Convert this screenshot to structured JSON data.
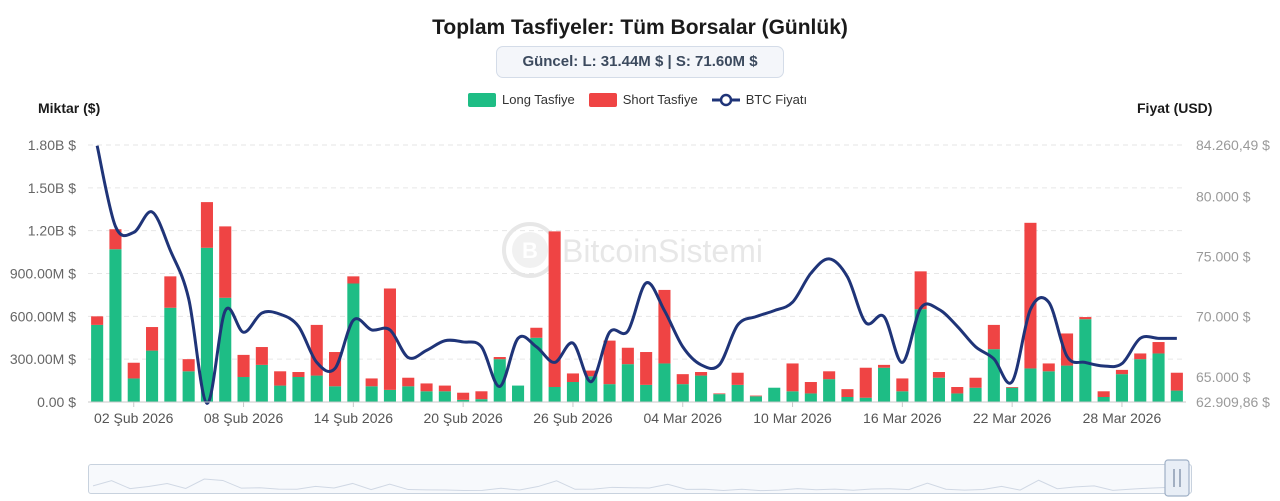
{
  "header": {
    "title": "Toplam Tasfiyeler: Tüm Borsalar (Günlük)",
    "current": "Güncel: L: 31.44M $ | S: 71.60M $"
  },
  "legend": {
    "long": "Long Tasfiye",
    "short": "Short Tasfiye",
    "price": "BTC Fiyatı"
  },
  "watermark": "BitcoinSistemi",
  "colors": {
    "long": "#1ebd85",
    "short": "#ef4444",
    "price": "#1f3478",
    "grid": "#e6e6e6"
  },
  "chart_data": {
    "type": "bar",
    "left_axis_title": "Miktar ($)",
    "right_axis_title": "Fiyat (USD)",
    "left_ticks": [
      "0.00 $",
      "300.00M $",
      "600.00M $",
      "900.00M $",
      "1.20B $",
      "1.50B $",
      "1.80B $"
    ],
    "left_tick_values": [
      0,
      300,
      600,
      900,
      1200,
      1500,
      1800
    ],
    "right_ticks": [
      "62.909,86 $",
      "65.000 $",
      "70.000 $",
      "75.000 $",
      "80.000 $",
      "84.260,49 $"
    ],
    "right_tick_values": [
      62909.86,
      65000,
      70000,
      75000,
      80000,
      84260.49
    ],
    "ylim_left": [
      0,
      1800
    ],
    "ylim_right": [
      62909.86,
      84260.49
    ],
    "x_labels": [
      "02 Şub 2026",
      "08 Şub 2026",
      "14 Şub 2026",
      "20 Şub 2026",
      "26 Şub 2026",
      "04 Mar 2026",
      "10 Mar 2026",
      "16 Mar 2026",
      "22 Mar 2026",
      "28 Mar 2026"
    ],
    "x_label_indices": [
      2,
      8,
      14,
      20,
      26,
      32,
      38,
      44,
      50,
      56
    ],
    "unit": "M $",
    "series": [
      {
        "name": "Long Tasfiye",
        "values": [
          540,
          1070,
          165,
          360,
          660,
          215,
          1080,
          730,
          175,
          260,
          115,
          175,
          185,
          110,
          830,
          110,
          85,
          110,
          75,
          75,
          15,
          20,
          300,
          115,
          450,
          105,
          140,
          180,
          125,
          265,
          120,
          270,
          125,
          185,
          55,
          120,
          40,
          100,
          75,
          60,
          160,
          35,
          30,
          240,
          75,
          650,
          170,
          60,
          100,
          370,
          100,
          235,
          215,
          255,
          580,
          35,
          195,
          300,
          340,
          80
        ]
      },
      {
        "name": "Short Tasfiye",
        "values": [
          60,
          140,
          110,
          165,
          220,
          85,
          320,
          500,
          155,
          125,
          100,
          35,
          355,
          240,
          50,
          55,
          710,
          60,
          55,
          40,
          50,
          55,
          15,
          0,
          70,
          1090,
          60,
          40,
          305,
          115,
          230,
          515,
          70,
          25,
          5,
          85,
          5,
          0,
          195,
          80,
          55,
          55,
          210,
          20,
          90,
          265,
          40,
          45,
          70,
          170,
          5,
          1020,
          55,
          225,
          15,
          40,
          30,
          40,
          80,
          125
        ]
      },
      {
        "name": "BTC Fiyatı",
        "values": [
          84200,
          77500,
          77000,
          78700,
          75500,
          71500,
          62800,
          70500,
          68700,
          70300,
          70200,
          69200,
          66200,
          65700,
          69700,
          68900,
          68900,
          66600,
          67200,
          68000,
          67900,
          67500,
          64200,
          68200,
          67500,
          66200,
          67800,
          64600,
          68700,
          68800,
          72800,
          70500,
          67500,
          66000,
          66000,
          69300,
          70000,
          70500,
          71200,
          73600,
          74800,
          73300,
          69500,
          70000,
          66200,
          70700,
          70600,
          69200,
          67500,
          66500,
          64600,
          70600,
          71200,
          66700,
          66200,
          65900,
          66100,
          68200,
          68200,
          68200
        ]
      }
    ]
  }
}
